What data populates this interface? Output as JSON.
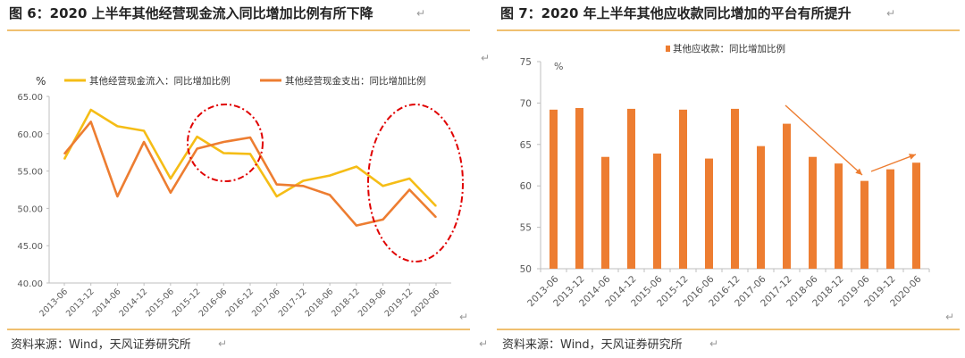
{
  "left": {
    "title": "图 6：2020 上半年其他经营现金流入同比增加比例有所下降",
    "source": "资料来源：Wind，天风证券研究所"
  },
  "right": {
    "title": "图 7：2020 年上半年其他应收款同比增加的平台有所提升",
    "source": "资料来源：Wind，天风证券研究所"
  },
  "glyphs": {
    "return_mark": "↵"
  },
  "colors": {
    "yellow": "#f5bd16",
    "orange": "#ed7d31",
    "red": "#e00000",
    "rule": "#f0c070"
  },
  "chart_data": [
    {
      "type": "line",
      "unit_label": "%",
      "categories": [
        "2013-06",
        "2013-12",
        "2014-06",
        "2014-12",
        "2015-06",
        "2015-12",
        "2016-06",
        "2016-12",
        "2017-06",
        "2017-12",
        "2018-06",
        "2018-12",
        "2019-06",
        "2019-12",
        "2020-06"
      ],
      "series": [
        {
          "name": "其他经营现金流入：同比增加比例",
          "color": "#f5bd16",
          "values": [
            56.6,
            63.2,
            61.0,
            60.4,
            54.0,
            59.6,
            57.4,
            57.3,
            51.6,
            53.7,
            54.4,
            55.6,
            53.0,
            54.0,
            50.3
          ]
        },
        {
          "name": "其他经营现金支出：同比增加比例",
          "color": "#ed7d31",
          "values": [
            57.3,
            61.6,
            51.6,
            58.9,
            52.1,
            58.0,
            58.9,
            59.5,
            53.2,
            53.0,
            51.8,
            47.7,
            48.5,
            52.5,
            48.8
          ]
        }
      ],
      "ylim": [
        40,
        65
      ],
      "yticks": [
        "40.00",
        "45.00",
        "50.00",
        "55.00",
        "60.00",
        "65.00"
      ],
      "annotations": [
        "red dash-dot ellipse around 2015-12 to 2016-12",
        "red dash-dot ellipse around 2019-06 to 2020-06"
      ]
    },
    {
      "type": "bar",
      "unit_label": "%",
      "categories": [
        "2013-06",
        "2013-12",
        "2014-06",
        "2014-12",
        "2015-06",
        "2015-12",
        "2016-06",
        "2016-12",
        "2017-06",
        "2017-12",
        "2018-06",
        "2018-12",
        "2019-06",
        "2019-12",
        "2020-06"
      ],
      "series": [
        {
          "name": "其他应收款：同比增加比例",
          "color": "#ed7d31",
          "values": [
            69.2,
            69.4,
            63.5,
            69.3,
            63.9,
            69.2,
            63.3,
            69.3,
            64.8,
            67.5,
            63.5,
            62.7,
            60.6,
            62.0,
            62.8
          ]
        }
      ],
      "ylim": [
        50,
        75
      ],
      "yticks": [
        "50",
        "55",
        "60",
        "65",
        "70",
        "75"
      ],
      "annotations": [
        "orange arrow declining into 2019-06",
        "orange arrow rising toward 2020-06"
      ]
    }
  ]
}
